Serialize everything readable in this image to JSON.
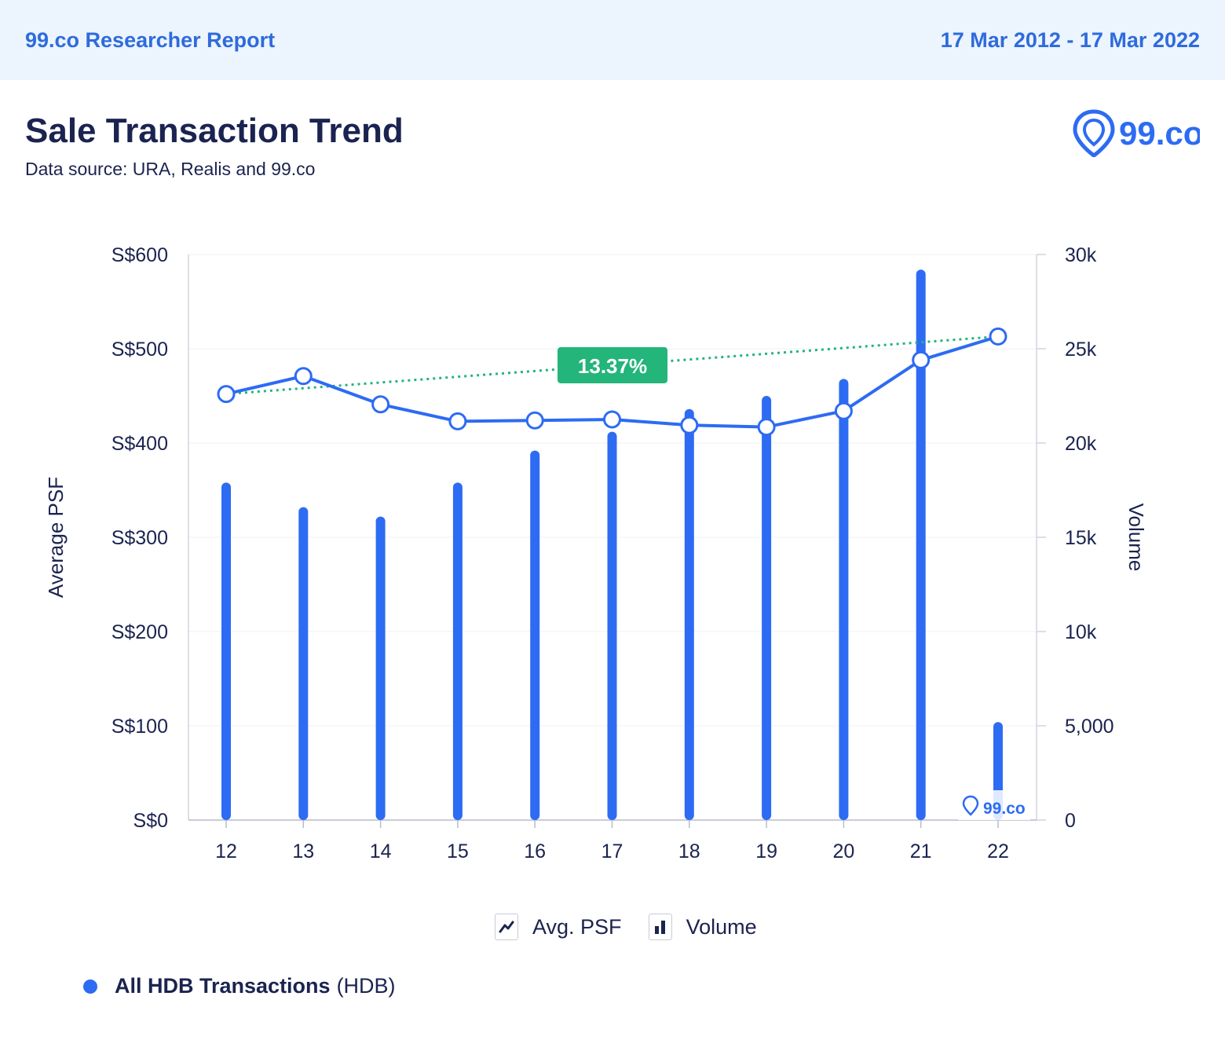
{
  "header": {
    "brand": "99.co Researcher Report",
    "date_range": "17 Mar 2012 - 17 Mar 2022"
  },
  "title": "Sale Transaction Trend",
  "subtitle": "Data source: URA, Realis and 99.co",
  "logo_text": "99.co",
  "watermark_text": "99.co",
  "legend": {
    "items": [
      {
        "label": "Avg. PSF",
        "icon": "line-chart-icon"
      },
      {
        "label": "Volume",
        "icon": "bar-chart-icon"
      }
    ]
  },
  "footnote": {
    "name": "All HDB Transactions",
    "type": "(HDB)"
  },
  "colors": {
    "accent": "#2d6bf3",
    "header_bg": "#ecf4fe",
    "dark_text": "#1b2350",
    "trend": "#23b57a"
  },
  "chart_data": {
    "type": "bar",
    "categories": [
      "12",
      "13",
      "14",
      "15",
      "16",
      "17",
      "18",
      "19",
      "20",
      "21",
      "22"
    ],
    "series": [
      {
        "name": "Volume",
        "type": "bar",
        "axis": "right",
        "values": [
          17900,
          16600,
          16100,
          17900,
          19600,
          20600,
          21800,
          22500,
          23400,
          29200,
          5200
        ]
      },
      {
        "name": "Avg. PSF",
        "type": "line",
        "axis": "left",
        "values": [
          452,
          471,
          441,
          423,
          424,
          425,
          419,
          417,
          434,
          488,
          513
        ]
      }
    ],
    "trend": {
      "label": "13.37%",
      "from": 452,
      "to": 513
    },
    "ylabel": "Average PSF",
    "y2label": "Volume",
    "ylim": [
      0,
      600
    ],
    "y2lim": [
      0,
      30000
    ],
    "yticks": [
      "S$0",
      "S$100",
      "S$200",
      "S$300",
      "S$400",
      "S$500",
      "S$600"
    ],
    "y2ticks": [
      "0",
      "5,000",
      "10k",
      "15k",
      "20k",
      "25k",
      "30k"
    ],
    "grid": true
  }
}
